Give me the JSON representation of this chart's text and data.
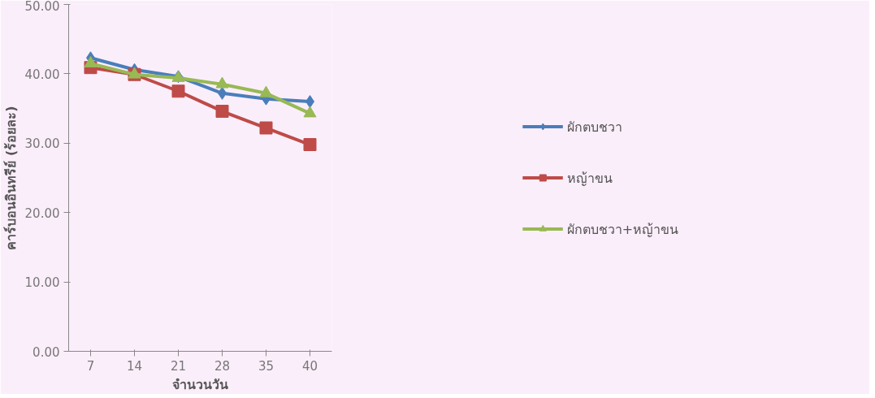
{
  "chart_data": {
    "type": "line",
    "categories": [
      "7",
      "14",
      "21",
      "28",
      "35",
      "40"
    ],
    "xlabel": "จำนวนวัน",
    "ylabel": "คาร์บอนอินทรีย์ (ร้อยละ)",
    "ylim": [
      0,
      50
    ],
    "yticks": [
      {
        "value": 0,
        "label": "0.00"
      },
      {
        "value": 10,
        "label": "10.00"
      },
      {
        "value": 20,
        "label": "20.00"
      },
      {
        "value": 30,
        "label": "30.00"
      },
      {
        "value": 40,
        "label": "40.00"
      },
      {
        "value": 50,
        "label": "50.00"
      }
    ],
    "grid": false,
    "legend": "right",
    "series": [
      {
        "name": "ผักตบชวา",
        "color": "#4a7ebb",
        "marker": "diamond",
        "values": [
          42.3,
          40.6,
          39.6,
          37.2,
          36.4,
          36.0
        ]
      },
      {
        "name": "หญ้าขน",
        "color": "#be4b48",
        "marker": "square",
        "values": [
          40.9,
          39.9,
          37.5,
          34.6,
          32.2,
          29.8
        ]
      },
      {
        "name": "ผักตบชวา+หญ้าขน",
        "color": "#98b954",
        "marker": "triangle",
        "values": [
          41.5,
          39.9,
          39.4,
          38.5,
          37.2,
          34.3
        ]
      }
    ]
  }
}
